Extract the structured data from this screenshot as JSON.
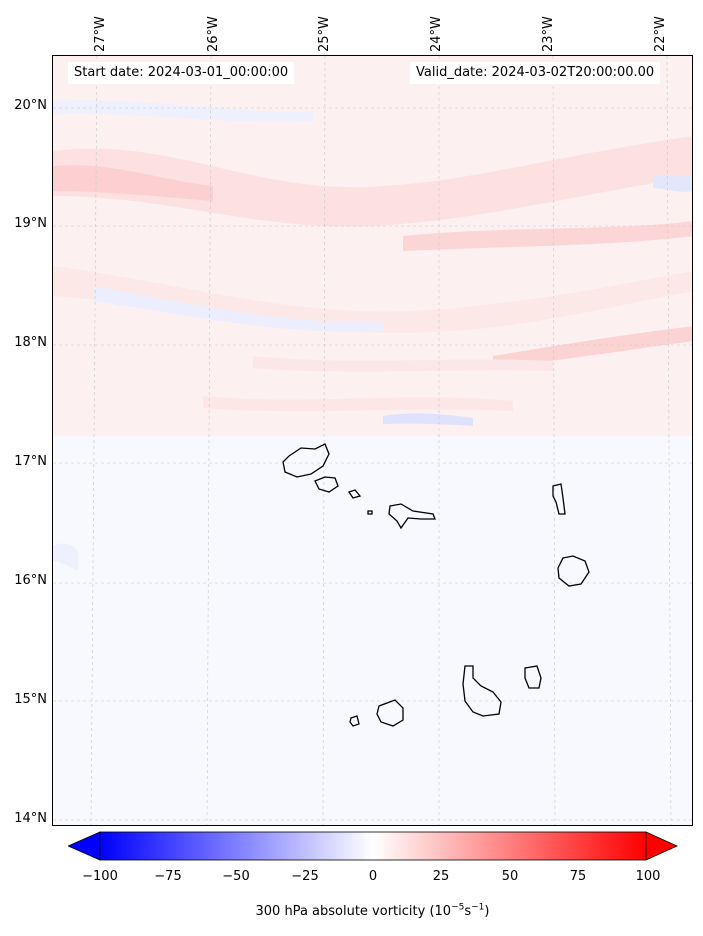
{
  "map": {
    "lat_labels": [
      "20°N",
      "19°N",
      "18°N",
      "17°N",
      "16°N",
      "15°N",
      "14°N"
    ],
    "lon_labels": [
      "27°W",
      "26°W",
      "25°W",
      "24°W",
      "23°W",
      "22°W"
    ],
    "start_date": "Start date: 2024-03-01_00:00:00",
    "valid_date": "Valid_date: 2024-03-02T20:00:00.00",
    "colors": {
      "negative": "#0000ff",
      "positive": "#ff0000",
      "neutral": "#ffffff",
      "coastline": "#000000"
    }
  },
  "colorbar": {
    "min": -100,
    "max": 100,
    "tick_labels": [
      "−100",
      "−75",
      "−50",
      "−25",
      "0",
      "25",
      "50",
      "75",
      "100"
    ],
    "title_prefix": "300 hPa absolute vorticity (10",
    "exp1": "−5",
    "mid": "s",
    "exp2": "−1",
    "title_suffix": ")"
  }
}
